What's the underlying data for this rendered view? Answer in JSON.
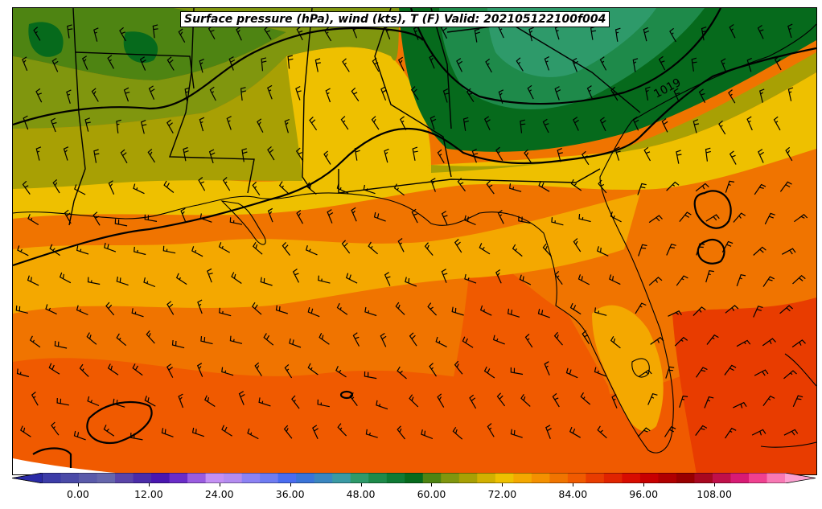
{
  "title": "Surface pressure (hPa), wind (kts), T (F) Valid: 202105122100f004",
  "contour_label": "1019",
  "colorbar": {
    "vmin": -6,
    "vmax": 120,
    "step": 3,
    "tick_values": [
      0,
      12,
      24,
      36,
      48,
      60,
      72,
      84,
      96,
      108
    ],
    "tick_labels": [
      "0.00",
      "12.00",
      "24.00",
      "36.00",
      "48.00",
      "60.00",
      "72.00",
      "84.00",
      "96.00",
      "108.00"
    ],
    "colors": [
      "#2a2aa6",
      "#3c3ca8",
      "#4a4aa8",
      "#5a5aaa",
      "#6666ac",
      "#5a44a8",
      "#4b2ca8",
      "#4a16b0",
      "#6a2cc8",
      "#9a5ce0",
      "#c490f4",
      "#b48cf0",
      "#8c82f4",
      "#6f7cf2",
      "#4a6cf0",
      "#3a74d8",
      "#3a86c0",
      "#3a9aa4",
      "#2e9a6a",
      "#1e8a4a",
      "#0e7a34",
      "#066a1c",
      "#4e8412",
      "#80960e",
      "#a8a004",
      "#d2b000",
      "#eec000",
      "#f4a800",
      "#f49000",
      "#f07400",
      "#f05a00",
      "#e83c00",
      "#e02400",
      "#d80c00",
      "#c80000",
      "#b00000",
      "#980000",
      "#a80820",
      "#c0104a",
      "#d81a74",
      "#f04090",
      "#f878b4",
      "#fca0d0"
    ]
  },
  "temperature_bands": {
    "forest": "#0e7a34",
    "dark_forest": "#066a1c",
    "green_mid": "#1e8a4a",
    "olive_green": "#4e8412",
    "olive": "#80960e",
    "yellow_olive": "#a8a004",
    "yellow": "#eec000",
    "light_orange": "#f4a800",
    "orange": "#f07400",
    "red_orange": "#f05a00",
    "red": "#e83c00"
  }
}
